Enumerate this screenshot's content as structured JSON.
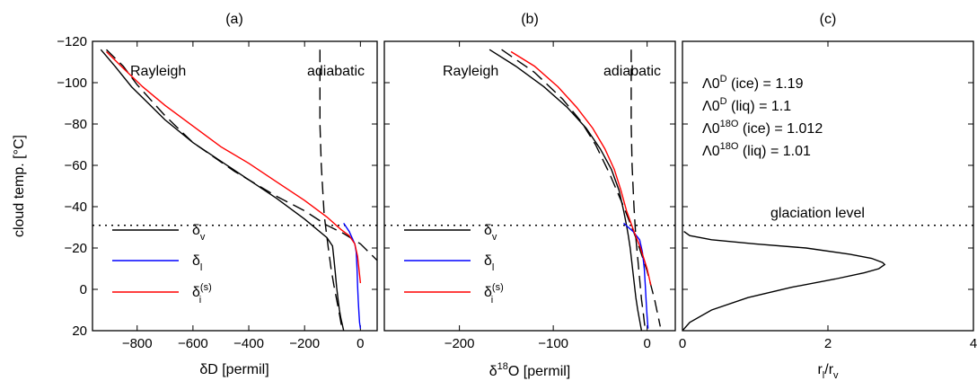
{
  "chart_data": [
    {
      "type": "line",
      "title": "(a)",
      "xlabel": "δD [permil]",
      "ylabel": "cloud temp. [°C]",
      "xlim": [
        -960,
        60
      ],
      "ylim": [
        -120,
        20
      ],
      "y_reversed": true,
      "xticks": [
        -800,
        -600,
        -400,
        -200,
        0
      ],
      "xtick_labels": [
        "−800",
        "−600",
        "−400",
        "−200",
        "0"
      ],
      "yticks": [
        -120,
        -100,
        -80,
        -60,
        -40,
        -20,
        0,
        20
      ],
      "ytick_labels": [
        "−120",
        "−100",
        "−80",
        "−60",
        "−40",
        "−20",
        "0",
        "20"
      ],
      "annotations": [
        "Rayleigh",
        "adiabatic"
      ],
      "legend": {
        "position": "lower-left",
        "entries": [
          {
            "main": "δ",
            "sub": "v",
            "sup": ""
          },
          {
            "main": "δ",
            "sub": "l",
            "sup": ""
          },
          {
            "main": "δ",
            "sub": "i",
            "sup": "(s)"
          }
        ]
      },
      "glaciation_level": -31,
      "series": [
        {
          "color": "#000000",
          "style": "solid",
          "x": [
            -930,
            -880,
            -820,
            -760,
            -700,
            -600,
            -500,
            -400,
            -300,
            -200,
            -120,
            -100,
            -95,
            -90,
            -85,
            -80,
            -75,
            -70,
            -65,
            -60
          ],
          "y": [
            -116,
            -108,
            -98,
            -90,
            -82,
            -71,
            -62,
            -53,
            -44,
            -34,
            -25,
            -21,
            -15,
            -8,
            -1,
            5,
            10,
            14,
            17,
            20
          ]
        },
        {
          "color": "#000000",
          "style": "dashed",
          "x": [
            -910,
            -850,
            -800,
            -700,
            -600,
            -450,
            -300,
            -200,
            -120,
            -60,
            0,
            60
          ],
          "y": [
            -116,
            -108,
            -99,
            -84,
            -71,
            -57,
            -45,
            -38,
            -31,
            -27,
            -22,
            -14
          ]
        },
        {
          "color": "#000000",
          "style": "dashed",
          "x": [
            -145,
            -145,
            -145,
            -140,
            -130,
            -115,
            -105,
            -95,
            -85,
            -75,
            -65
          ],
          "y": [
            -116,
            -100,
            -80,
            -60,
            -36,
            -20,
            -10,
            -2,
            5,
            12,
            20
          ]
        },
        {
          "color": "#0000ff",
          "style": "solid",
          "x": [
            -60,
            -40,
            -30,
            -20,
            -15,
            -12,
            -10,
            -8,
            -5,
            -3,
            0
          ],
          "y": [
            -32,
            -28,
            -25,
            -22,
            -18,
            -10,
            -2,
            5,
            12,
            16,
            19
          ]
        },
        {
          "color": "#ff0000",
          "style": "solid",
          "x": [
            -910,
            -850,
            -780,
            -700,
            -600,
            -500,
            -400,
            -300,
            -200,
            -120,
            -70,
            -40,
            -20,
            -10,
            0
          ],
          "y": [
            -115,
            -107,
            -98,
            -89,
            -79,
            -69,
            -61,
            -52,
            -43,
            -35,
            -29,
            -26,
            -22,
            -16,
            -3
          ]
        }
      ]
    },
    {
      "type": "line",
      "title": "(b)",
      "xlabel": "δ¹⁸O [permil]",
      "xlim": [
        -280,
        30
      ],
      "ylim": [
        -120,
        20
      ],
      "y_reversed": true,
      "xticks": [
        -200,
        -100,
        0
      ],
      "xtick_labels": [
        "−200",
        "−100",
        "0"
      ],
      "annotations": [
        "Rayleigh",
        "adiabatic"
      ],
      "legend": {
        "position": "lower-left",
        "entries": [
          {
            "main": "δ",
            "sub": "v",
            "sup": ""
          },
          {
            "main": "δ",
            "sub": "l",
            "sup": ""
          },
          {
            "main": "δ",
            "sub": "i",
            "sup": "(s)"
          }
        ]
      },
      "glaciation_level": -31,
      "series": [
        {
          "color": "#000000",
          "style": "solid",
          "x": [
            -168,
            -140,
            -110,
            -85,
            -65,
            -50,
            -38,
            -30,
            -25,
            -22,
            -20,
            -18,
            -16,
            -14,
            -12,
            -10,
            -8,
            -6
          ],
          "y": [
            -116,
            -108,
            -98,
            -88,
            -78,
            -68,
            -58,
            -48,
            -38,
            -31,
            -26,
            -20,
            -12,
            -4,
            4,
            10,
            15,
            20
          ]
        },
        {
          "color": "#000000",
          "style": "dashed",
          "x": [
            -155,
            -120,
            -90,
            -70,
            -55,
            -40,
            -25,
            -12,
            0,
            8,
            14
          ],
          "y": [
            -116,
            -105,
            -92,
            -81,
            -70,
            -56,
            -40,
            -25,
            -9,
            5,
            18
          ]
        },
        {
          "color": "#000000",
          "style": "dashed",
          "x": [
            -17,
            -17,
            -17,
            -16,
            -14,
            -12,
            -10,
            -8,
            -6,
            -4,
            -2
          ],
          "y": [
            -116,
            -100,
            -80,
            -60,
            -40,
            -25,
            -15,
            -5,
            5,
            12,
            20
          ]
        },
        {
          "color": "#0000ff",
          "style": "solid",
          "x": [
            -25,
            -15,
            -8,
            -5,
            -3,
            -2,
            -1,
            0,
            1
          ],
          "y": [
            -32,
            -28,
            -24,
            -18,
            -10,
            -2,
            6,
            13,
            19
          ]
        },
        {
          "color": "#ff0000",
          "style": "solid",
          "x": [
            -145,
            -120,
            -95,
            -75,
            -58,
            -45,
            -35,
            -28,
            -22,
            -14,
            -7,
            0,
            4
          ],
          "y": [
            -115,
            -108,
            -98,
            -88,
            -78,
            -68,
            -58,
            -48,
            -38,
            -28,
            -20,
            -10,
            -2
          ]
        }
      ]
    },
    {
      "type": "line",
      "title": "(c)",
      "xlabel": "r_l / r_v",
      "xlim": [
        0,
        4
      ],
      "ylim": [
        -120,
        20
      ],
      "y_reversed": true,
      "xticks": [
        0,
        2,
        4
      ],
      "xtick_labels": [
        "0",
        "2",
        "4"
      ],
      "annotations": [
        "glaciation level"
      ],
      "glaciation_level": -31,
      "params": [
        {
          "sym": "Λ0",
          "sup": "D",
          "rest": " (ice) = 1.19"
        },
        {
          "sym": "Λ0",
          "sup": "D",
          "rest": " (liq) = 1.1"
        },
        {
          "sym": "Λ0",
          "sup": "18O",
          "rest": " (ice) = 1.012"
        },
        {
          "sym": "Λ0",
          "sup": "18O",
          "rest": " (liq) = 1.01"
        }
      ],
      "series": [
        {
          "color": "#000000",
          "style": "solid",
          "x": [
            0.02,
            0.1,
            0.4,
            1.0,
            1.7,
            2.3,
            2.6,
            2.75,
            2.78,
            2.7,
            2.5,
            2.1,
            1.5,
            0.9,
            0.4,
            0.1,
            0.0
          ],
          "y": [
            -28,
            -26,
            -24,
            -22,
            -20,
            -17,
            -15,
            -13,
            -12,
            -10,
            -8,
            -5,
            -1,
            4,
            10,
            16,
            20
          ]
        }
      ]
    }
  ],
  "labels": {
    "ylabel": "cloud temp. [°C]",
    "a": {
      "title": "(a)",
      "xlabel": "δD [permil]",
      "rayleigh": "Rayleigh",
      "adiabatic": "adiabatic"
    },
    "b": {
      "title": "(b)",
      "xlabel_prefix": "δ",
      "xlabel_sup": "18",
      "xlabel_rest": "O [permil]",
      "rayleigh": "Rayleigh",
      "adiabatic": "adiabatic"
    },
    "c": {
      "title": "(c)",
      "xlabel_main1": "r",
      "xlabel_sub1": "l",
      "xlabel_main2": "/r",
      "xlabel_sub2": "v",
      "glaciation": "glaciation level"
    }
  }
}
